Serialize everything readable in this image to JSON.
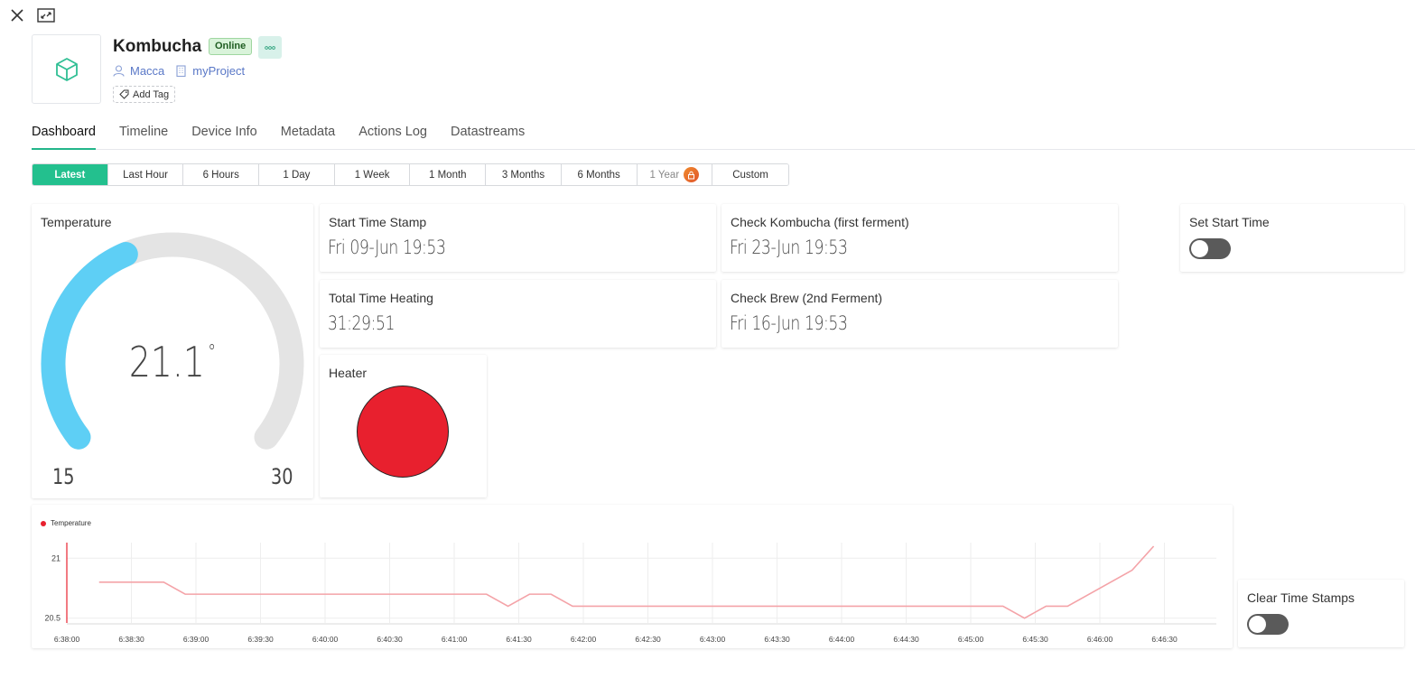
{
  "window": {
    "close_icon": "close-icon",
    "expand_icon": "expand-icon"
  },
  "device": {
    "name": "Kombucha",
    "status": "Online",
    "owner": "Macca",
    "project": "myProject",
    "add_tag_label": "Add Tag"
  },
  "tabs": [
    "Dashboard",
    "Timeline",
    "Device Info",
    "Metadata",
    "Actions Log",
    "Datastreams"
  ],
  "active_tab": "Dashboard",
  "ranges": [
    "Latest",
    "Last Hour",
    "6 Hours",
    "1 Day",
    "1 Week",
    "1 Month",
    "3 Months",
    "6 Months",
    "1 Year",
    "Custom"
  ],
  "active_range": "Latest",
  "locked_range": "1 Year",
  "widgets": {
    "temperature": {
      "title": "Temperature",
      "value": "21.1",
      "unit": "°",
      "min": "15",
      "max": "30",
      "fraction": 0.41
    },
    "start_time": {
      "title": "Start Time Stamp",
      "value": "Fri 09-Jun 19:53"
    },
    "check_kombucha": {
      "title": "Check Kombucha (first ferment)",
      "value": "Fri 23-Jun 19:53"
    },
    "total_heating": {
      "title": "Total Time Heating",
      "value": "31:29:51"
    },
    "check_brew": {
      "title": "Check Brew (2nd Ferment)",
      "value": "Fri 16-Jun 19:53"
    },
    "heater": {
      "title": "Heater",
      "color": "#e8202e"
    },
    "set_start": {
      "title": "Set Start Time",
      "on": false
    },
    "clear_stamps": {
      "title": "Clear Time Stamps",
      "on": false
    }
  },
  "colors": {
    "accent": "#23c08e",
    "gauge_fill": "#5ecff5",
    "gauge_track": "#e4e4e4",
    "series": "#e8202e",
    "line": "#f4a3a8"
  },
  "chart_data": {
    "type": "line",
    "series": [
      {
        "name": "Temperature",
        "x": [
          "6:38:15",
          "6:38:45",
          "6:38:55",
          "6:41:15",
          "6:41:25",
          "6:41:35",
          "6:41:45",
          "6:41:55",
          "6:45:15",
          "6:45:25",
          "6:45:35",
          "6:45:45",
          "6:46:15",
          "6:46:25"
        ],
        "values": [
          20.8,
          20.8,
          20.7,
          20.7,
          20.6,
          20.7,
          20.7,
          20.6,
          20.6,
          20.5,
          20.6,
          20.6,
          20.9,
          21.1
        ]
      }
    ],
    "x_ticks": [
      "6:38:00",
      "6:38:30",
      "6:39:00",
      "6:39:30",
      "6:40:00",
      "6:40:30",
      "6:41:00",
      "6:41:30",
      "6:42:00",
      "6:42:30",
      "6:43:00",
      "6:43:30",
      "6:44:00",
      "6:44:30",
      "6:45:00",
      "6:45:30",
      "6:46:00",
      "6:46:30"
    ],
    "y_ticks": [
      "21",
      "20.5"
    ],
    "ylim": [
      20.46,
      21.13
    ],
    "grid": true,
    "legend": "top-left"
  }
}
